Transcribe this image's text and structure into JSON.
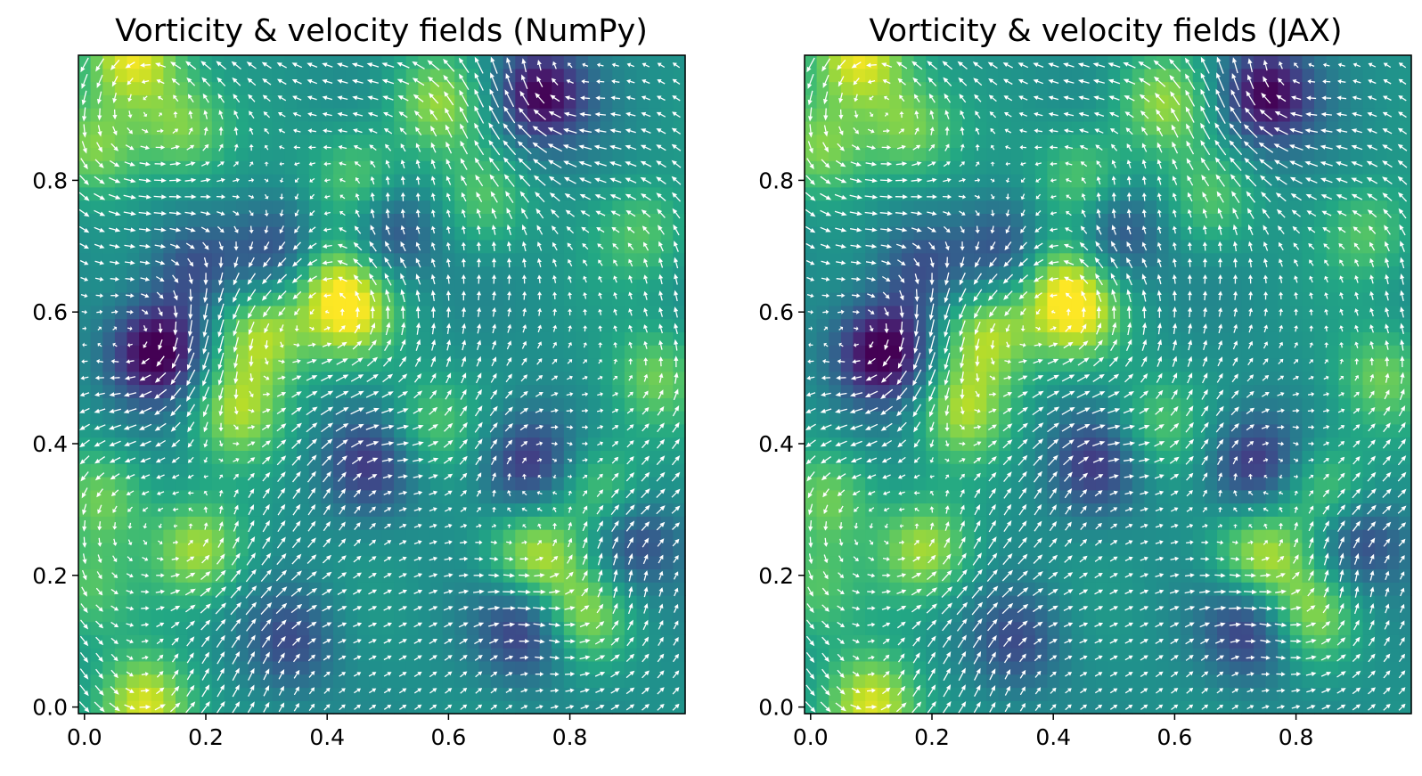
{
  "chart_data": [
    {
      "type": "heatmap",
      "title": "Vorticity & velocity fields (NumPy)",
      "xlabel": "",
      "ylabel": "",
      "xlim": [
        -0.01,
        0.99
      ],
      "ylim": [
        -0.01,
        0.99
      ],
      "xticks": [
        0.0,
        0.2,
        0.4,
        0.6,
        0.8
      ],
      "xtick_labels": [
        "0.0",
        "0.2",
        "0.4",
        "0.6",
        "0.8"
      ],
      "yticks": [
        0.0,
        0.2,
        0.4,
        0.6,
        0.8
      ],
      "ytick_labels": [
        "0.0",
        "0.2",
        "0.4",
        "0.6",
        "0.8"
      ],
      "colormap": "viridis",
      "overlay": "quiver",
      "quiver_color": "#ffffff",
      "grid_resolution": [
        50,
        50
      ],
      "vortices": [
        {
          "x": 0.12,
          "y": 0.54,
          "strength": -1.0
        },
        {
          "x": 0.75,
          "y": 0.93,
          "strength": -0.9
        },
        {
          "x": 0.73,
          "y": 0.37,
          "strength": -0.65
        },
        {
          "x": 0.73,
          "y": 0.12,
          "strength": -0.65
        },
        {
          "x": 0.47,
          "y": 0.37,
          "strength": -0.55
        },
        {
          "x": 0.5,
          "y": 0.72,
          "strength": -0.55
        },
        {
          "x": 0.33,
          "y": 0.69,
          "strength": -0.5
        },
        {
          "x": 0.9,
          "y": 0.25,
          "strength": -0.55
        },
        {
          "x": 0.18,
          "y": 0.67,
          "strength": -0.45
        },
        {
          "x": 0.34,
          "y": 0.1,
          "strength": -0.45
        },
        {
          "x": 0.08,
          "y": 0.99,
          "strength": 0.85
        },
        {
          "x": 0.1,
          "y": 0.0,
          "strength": 0.85
        },
        {
          "x": 0.29,
          "y": 0.57,
          "strength": 0.7
        },
        {
          "x": 0.25,
          "y": 0.45,
          "strength": 0.6
        },
        {
          "x": 0.44,
          "y": 0.6,
          "strength": 0.75
        },
        {
          "x": 0.4,
          "y": 0.66,
          "strength": 0.5
        },
        {
          "x": 0.19,
          "y": 0.24,
          "strength": 0.65
        },
        {
          "x": 0.74,
          "y": 0.23,
          "strength": 0.7
        },
        {
          "x": 0.82,
          "y": 0.14,
          "strength": 0.6
        },
        {
          "x": 0.58,
          "y": 0.92,
          "strength": 0.6
        },
        {
          "x": 0.45,
          "y": 0.8,
          "strength": 0.5
        },
        {
          "x": 0.02,
          "y": 0.85,
          "strength": 0.55
        },
        {
          "x": 0.16,
          "y": 0.88,
          "strength": 0.55
        },
        {
          "x": 0.94,
          "y": 0.5,
          "strength": 0.5
        },
        {
          "x": 0.85,
          "y": 0.33,
          "strength": 0.5
        },
        {
          "x": 0.03,
          "y": 0.32,
          "strength": 0.5
        },
        {
          "x": 0.92,
          "y": 0.72,
          "strength": 0.4
        },
        {
          "x": 0.66,
          "y": 0.77,
          "strength": 0.4
        },
        {
          "x": 0.57,
          "y": 0.43,
          "strength": 0.4
        },
        {
          "x": 0.0,
          "y": 0.18,
          "strength": 0.4
        }
      ]
    },
    {
      "type": "heatmap",
      "title": "Vorticity & velocity fields (JAX)",
      "xlabel": "",
      "ylabel": "",
      "xlim": [
        -0.01,
        0.99
      ],
      "ylim": [
        -0.01,
        0.99
      ],
      "xticks": [
        0.0,
        0.2,
        0.4,
        0.6,
        0.8
      ],
      "xtick_labels": [
        "0.0",
        "0.2",
        "0.4",
        "0.6",
        "0.8"
      ],
      "yticks": [
        0.0,
        0.2,
        0.4,
        0.6,
        0.8
      ],
      "ytick_labels": [
        "0.0",
        "0.2",
        "0.4",
        "0.6",
        "0.8"
      ],
      "colormap": "viridis",
      "overlay": "quiver",
      "quiver_color": "#ffffff",
      "grid_resolution": [
        50,
        50
      ],
      "vortices": [
        {
          "x": 0.12,
          "y": 0.54,
          "strength": -1.0
        },
        {
          "x": 0.75,
          "y": 0.93,
          "strength": -0.9
        },
        {
          "x": 0.73,
          "y": 0.37,
          "strength": -0.65
        },
        {
          "x": 0.73,
          "y": 0.12,
          "strength": -0.65
        },
        {
          "x": 0.47,
          "y": 0.37,
          "strength": -0.55
        },
        {
          "x": 0.5,
          "y": 0.72,
          "strength": -0.55
        },
        {
          "x": 0.33,
          "y": 0.69,
          "strength": -0.5
        },
        {
          "x": 0.9,
          "y": 0.25,
          "strength": -0.55
        },
        {
          "x": 0.18,
          "y": 0.67,
          "strength": -0.45
        },
        {
          "x": 0.34,
          "y": 0.1,
          "strength": -0.45
        },
        {
          "x": 0.08,
          "y": 0.99,
          "strength": 0.85
        },
        {
          "x": 0.1,
          "y": 0.0,
          "strength": 0.85
        },
        {
          "x": 0.29,
          "y": 0.57,
          "strength": 0.7
        },
        {
          "x": 0.25,
          "y": 0.45,
          "strength": 0.6
        },
        {
          "x": 0.44,
          "y": 0.6,
          "strength": 0.75
        },
        {
          "x": 0.4,
          "y": 0.66,
          "strength": 0.5
        },
        {
          "x": 0.19,
          "y": 0.24,
          "strength": 0.65
        },
        {
          "x": 0.74,
          "y": 0.23,
          "strength": 0.7
        },
        {
          "x": 0.82,
          "y": 0.14,
          "strength": 0.6
        },
        {
          "x": 0.58,
          "y": 0.92,
          "strength": 0.6
        },
        {
          "x": 0.45,
          "y": 0.8,
          "strength": 0.5
        },
        {
          "x": 0.02,
          "y": 0.85,
          "strength": 0.55
        },
        {
          "x": 0.16,
          "y": 0.88,
          "strength": 0.55
        },
        {
          "x": 0.94,
          "y": 0.5,
          "strength": 0.5
        },
        {
          "x": 0.85,
          "y": 0.33,
          "strength": 0.5
        },
        {
          "x": 0.03,
          "y": 0.32,
          "strength": 0.5
        },
        {
          "x": 0.92,
          "y": 0.72,
          "strength": 0.4
        },
        {
          "x": 0.66,
          "y": 0.77,
          "strength": 0.4
        },
        {
          "x": 0.57,
          "y": 0.43,
          "strength": 0.4
        },
        {
          "x": 0.0,
          "y": 0.18,
          "strength": 0.4
        }
      ]
    }
  ]
}
